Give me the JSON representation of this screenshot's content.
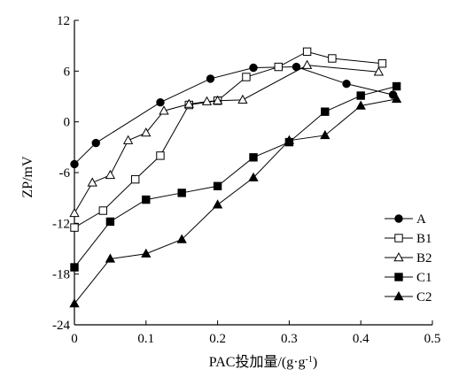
{
  "chart_data": {
    "type": "line",
    "xlabel": "PAC投加量/(g·g",
    "xlabel_sup": "-1",
    "xlabel_tail": ")",
    "ylabel": "ZP/mV",
    "xlim": [
      0,
      0.5
    ],
    "ylim": [
      -24,
      12
    ],
    "x_ticks": [
      0,
      0.1,
      0.2,
      0.3,
      0.4,
      0.5
    ],
    "x_tick_labels": [
      "0",
      "0.1",
      "0.2",
      "0.3",
      "0.4",
      "0.5"
    ],
    "y_ticks": [
      -24,
      -18,
      -12,
      -6,
      0,
      6,
      12
    ],
    "y_tick_labels": [
      "-24",
      "-18",
      "-12",
      "-6",
      "0",
      "6",
      "12"
    ],
    "grid": false,
    "legend_position": "bottom-right",
    "series": [
      {
        "name": "A",
        "marker": "filled-circle",
        "x": [
          0,
          0.03,
          0.12,
          0.19,
          0.25,
          0.31,
          0.38,
          0.445
        ],
        "y": [
          -5,
          -2.5,
          2.3,
          5.1,
          6.4,
          6.5,
          4.5,
          3.2
        ]
      },
      {
        "name": "B1",
        "marker": "open-square",
        "x": [
          0,
          0.04,
          0.085,
          0.12,
          0.16,
          0.2,
          0.24,
          0.285,
          0.325,
          0.36,
          0.43
        ],
        "y": [
          -12.5,
          -10.5,
          -6.8,
          -4,
          2,
          2.5,
          5.3,
          6.5,
          8.3,
          7.5,
          6.9
        ]
      },
      {
        "name": "B2",
        "marker": "open-triangle",
        "x": [
          0,
          0.025,
          0.05,
          0.075,
          0.1,
          0.125,
          0.16,
          0.185,
          0.2,
          0.235,
          0.325,
          0.425
        ],
        "y": [
          -10.8,
          -7.2,
          -6.3,
          -2.2,
          -1.3,
          1.3,
          2.1,
          2.4,
          2.5,
          2.6,
          6.7,
          5.9
        ]
      },
      {
        "name": "C1",
        "marker": "filled-square",
        "x": [
          0,
          0.05,
          0.1,
          0.15,
          0.2,
          0.25,
          0.3,
          0.35,
          0.4,
          0.45
        ],
        "y": [
          -17.2,
          -11.8,
          -9.2,
          -8.4,
          -7.6,
          -4.2,
          -2.4,
          1.2,
          3.1,
          4.2
        ]
      },
      {
        "name": "C2",
        "marker": "filled-triangle",
        "x": [
          0,
          0.05,
          0.1,
          0.15,
          0.2,
          0.25,
          0.3,
          0.35,
          0.4,
          0.45
        ],
        "y": [
          -21.5,
          -16.2,
          -15.6,
          -13.9,
          -9.8,
          -6.6,
          -2.2,
          -1.6,
          1.9,
          2.7
        ]
      }
    ]
  }
}
